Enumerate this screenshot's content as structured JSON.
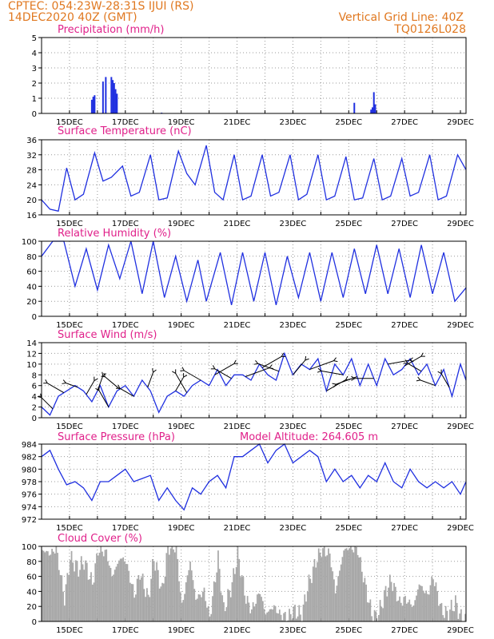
{
  "header": {
    "line1": "CPTEC:   054:23W-28:31S   IJUI (RS)",
    "line2": "14DEC2020 40Z (GMT)",
    "grid_note": "Vertical Grid Line: 40Z",
    "model_code": "TQ0126L028"
  },
  "colors": {
    "header": "#e07820",
    "title": "#e0208a",
    "line": "#2030e0",
    "cloud": "#a8a8a8"
  },
  "chart_data": [
    {
      "type": "bar",
      "title": "Precipitation (mm/h)",
      "ylim": [
        0,
        5
      ],
      "yticks": [
        0,
        1,
        2,
        3,
        4,
        5
      ],
      "date_labels": [
        "15DEC",
        "17DEC",
        "19DEC",
        "21DEC",
        "23DEC",
        "25DEC",
        "27DEC",
        "29DEC"
      ],
      "points": [
        [
          1.8,
          0.9
        ],
        [
          1.85,
          1.1
        ],
        [
          1.9,
          1.2
        ],
        [
          2.2,
          2.1
        ],
        [
          2.3,
          2.4
        ],
        [
          2.5,
          2.4
        ],
        [
          2.55,
          2.2
        ],
        [
          2.6,
          2.0
        ],
        [
          2.65,
          1.6
        ],
        [
          2.7,
          1.3
        ],
        [
          4.3,
          0.05
        ],
        [
          11.2,
          0.7
        ],
        [
          11.8,
          0.25
        ],
        [
          11.85,
          0.4
        ],
        [
          11.9,
          1.4
        ],
        [
          11.95,
          0.6
        ]
      ]
    },
    {
      "type": "line",
      "title": "Surface Temperature (nC)",
      "ylim": [
        16,
        36
      ],
      "yticks": [
        16,
        20,
        24,
        28,
        32,
        36
      ],
      "date_labels": [
        "15DEC",
        "17DEC",
        "19DEC",
        "21DEC",
        "23DEC",
        "25DEC",
        "27DEC",
        "29DEC"
      ],
      "x": [
        0,
        0.3,
        0.6,
        0.9,
        1.2,
        1.5,
        1.9,
        2.2,
        2.5,
        2.9,
        3.2,
        3.5,
        3.9,
        4.2,
        4.5,
        4.9,
        5.2,
        5.5,
        5.9,
        6.2,
        6.5,
        6.9,
        7.2,
        7.5,
        7.9,
        8.2,
        8.5,
        8.9,
        9.2,
        9.5,
        9.9,
        10.2,
        10.5,
        10.9,
        11.2,
        11.5,
        11.9,
        12.2,
        12.5,
        12.9,
        13.2,
        13.5,
        13.9,
        14.2,
        14.5,
        14.9,
        15.2
      ],
      "values": [
        20,
        17.5,
        17,
        28.5,
        20,
        21.5,
        32.5,
        25,
        26,
        29,
        21,
        22,
        32,
        20,
        20.5,
        33,
        27,
        24,
        34.5,
        22,
        20,
        32,
        20,
        21,
        32,
        21,
        22,
        32,
        20,
        21.5,
        32,
        20,
        21,
        31.5,
        20,
        20.5,
        31,
        20,
        21,
        31,
        21,
        22,
        32,
        20,
        21,
        32,
        28
      ]
    },
    {
      "type": "line",
      "title": "Relative Humidity (%)",
      "ylim": [
        0,
        100
      ],
      "yticks": [
        0,
        20,
        40,
        60,
        80,
        100
      ],
      "date_labels": [
        "15DEC",
        "17DEC",
        "19DEC",
        "21DEC",
        "23DEC",
        "25DEC",
        "27DEC",
        "29DEC"
      ],
      "x": [
        0,
        0.4,
        0.8,
        1.2,
        1.6,
        2.0,
        2.4,
        2.8,
        3.2,
        3.6,
        4.0,
        4.4,
        4.8,
        5.2,
        5.6,
        5.9,
        6.4,
        6.8,
        7.2,
        7.6,
        8.0,
        8.4,
        8.8,
        9.2,
        9.6,
        10.0,
        10.4,
        10.8,
        11.2,
        11.6,
        12.0,
        12.4,
        12.8,
        13.2,
        13.6,
        14.0,
        14.4,
        14.8,
        15.2
      ],
      "values": [
        80,
        100,
        100,
        40,
        90,
        35,
        95,
        50,
        100,
        30,
        100,
        25,
        80,
        20,
        75,
        20,
        85,
        15,
        85,
        20,
        85,
        15,
        80,
        25,
        85,
        20,
        85,
        25,
        90,
        30,
        95,
        30,
        90,
        25,
        95,
        30,
        85,
        20,
        38
      ]
    },
    {
      "type": "line",
      "title": "Surface Wind (m/s)",
      "ylim": [
        0,
        14
      ],
      "yticks": [
        0,
        2,
        4,
        6,
        8,
        10,
        12,
        14
      ],
      "date_labels": [
        "15DEC",
        "17DEC",
        "19DEC",
        "21DEC",
        "23DEC",
        "25DEC",
        "27DEC",
        "29DEC"
      ],
      "x": [
        0,
        0.3,
        0.6,
        0.9,
        1.2,
        1.5,
        1.8,
        2.1,
        2.4,
        2.7,
        3.0,
        3.3,
        3.6,
        3.9,
        4.2,
        4.5,
        4.8,
        5.1,
        5.4,
        5.7,
        6.0,
        6.3,
        6.6,
        6.9,
        7.2,
        7.5,
        7.8,
        8.1,
        8.4,
        8.7,
        9.0,
        9.3,
        9.6,
        9.9,
        10.2,
        10.5,
        10.8,
        11.1,
        11.4,
        11.7,
        12.0,
        12.3,
        12.6,
        12.9,
        13.2,
        13.5,
        13.8,
        14.1,
        14.4,
        14.7,
        15.0,
        15.2
      ],
      "values": [
        2,
        0.5,
        4,
        5,
        6,
        5,
        3,
        6,
        2,
        5,
        6,
        4,
        7,
        5,
        1,
        4,
        5,
        4,
        6,
        7,
        6,
        9,
        6,
        8,
        8,
        7,
        10,
        8,
        7,
        12,
        8,
        10,
        9,
        11,
        5,
        10,
        8,
        11,
        6,
        10,
        6,
        11,
        8,
        9,
        11,
        8,
        10,
        6,
        9,
        4,
        10,
        7
      ],
      "arrows": [
        {
          "x": 0.4,
          "dir": 315,
          "len": 5
        },
        {
          "x": 0.8,
          "dir": 300,
          "len": 6
        },
        {
          "x": 1.3,
          "dir": 290,
          "len": 4
        },
        {
          "x": 1.6,
          "dir": 30,
          "len": 5
        },
        {
          "x": 2.0,
          "dir": 20,
          "len": 5
        },
        {
          "x": 2.4,
          "dir": 330,
          "len": 6
        },
        {
          "x": 2.8,
          "dir": 310,
          "len": 6
        },
        {
          "x": 3.3,
          "dir": 300,
          "len": 5
        },
        {
          "x": 3.8,
          "dir": 20,
          "len": 5
        },
        {
          "x": 4.8,
          "dir": 30,
          "len": 5
        },
        {
          "x": 5.2,
          "dir": 330,
          "len": 7
        },
        {
          "x": 5.7,
          "dir": 300,
          "len": 6
        },
        {
          "x": 6.2,
          "dir": 60,
          "len": 7
        },
        {
          "x": 6.8,
          "dir": 300,
          "len": 6
        },
        {
          "x": 7.3,
          "dir": 70,
          "len": 8
        },
        {
          "x": 7.9,
          "dir": 60,
          "len": 7
        },
        {
          "x": 8.5,
          "dir": 290,
          "len": 7
        },
        {
          "x": 9.0,
          "dir": 40,
          "len": 6
        },
        {
          "x": 9.6,
          "dir": 70,
          "len": 8
        },
        {
          "x": 10.2,
          "dir": 60,
          "len": 7
        },
        {
          "x": 10.8,
          "dir": 280,
          "len": 7
        },
        {
          "x": 11.3,
          "dir": 250,
          "len": 7
        },
        {
          "x": 11.9,
          "dir": 270,
          "len": 6
        },
        {
          "x": 12.4,
          "dir": 80,
          "len": 7
        },
        {
          "x": 13.0,
          "dir": 60,
          "len": 6
        },
        {
          "x": 13.6,
          "dir": 300,
          "len": 5
        },
        {
          "x": 14.1,
          "dir": 290,
          "len": 5
        },
        {
          "x": 14.6,
          "dir": 330,
          "len": 5
        }
      ]
    },
    {
      "type": "line",
      "title": "Surface Pressure (hPa)",
      "annotation": "Model Altitude: 264.605 m",
      "ylim": [
        972,
        984
      ],
      "yticks": [
        972,
        974,
        976,
        978,
        980,
        982,
        984
      ],
      "date_labels": [
        "15DEC",
        "17DEC",
        "19DEC",
        "21DEC",
        "23DEC",
        "25DEC",
        "27DEC",
        "29DEC"
      ],
      "x": [
        0,
        0.3,
        0.6,
        0.9,
        1.2,
        1.5,
        1.8,
        2.1,
        2.4,
        2.7,
        3.0,
        3.3,
        3.6,
        3.9,
        4.2,
        4.5,
        4.8,
        5.1,
        5.4,
        5.7,
        6.0,
        6.3,
        6.6,
        6.9,
        7.2,
        7.5,
        7.8,
        8.1,
        8.4,
        8.7,
        9.0,
        9.3,
        9.6,
        9.9,
        10.2,
        10.5,
        10.8,
        11.1,
        11.4,
        11.7,
        12.0,
        12.3,
        12.6,
        12.9,
        13.2,
        13.5,
        13.8,
        14.1,
        14.4,
        14.7,
        15.0,
        15.2
      ],
      "values": [
        982,
        983,
        980,
        977.5,
        978,
        977,
        975,
        978,
        978,
        979,
        980,
        978,
        978.5,
        979,
        975,
        977,
        975,
        973.5,
        977,
        976,
        978,
        979,
        977,
        982,
        982,
        983,
        984,
        981,
        983,
        984,
        981,
        982,
        983,
        982,
        978,
        980,
        978,
        979,
        977,
        979,
        978,
        981,
        978,
        977,
        980,
        978,
        977,
        978,
        977,
        978,
        976,
        978
      ]
    },
    {
      "type": "area",
      "title": "Cloud Cover (%)",
      "ylim": [
        0,
        100
      ],
      "yticks": [
        0,
        20,
        40,
        60,
        80,
        100
      ],
      "date_labels": [
        "15DEC",
        "17DEC",
        "19DEC",
        "21DEC",
        "23DEC",
        "25DEC",
        "27DEC",
        "29DEC"
      ],
      "x": [
        0,
        0.3,
        0.5,
        0.8,
        1.0,
        1.3,
        1.5,
        1.8,
        2.0,
        2.3,
        2.5,
        2.8,
        3.0,
        3.3,
        3.5,
        3.8,
        4.0,
        4.3,
        4.5,
        4.8,
        5.0,
        5.3,
        5.5,
        5.8,
        6.0,
        6.3,
        6.5,
        6.8,
        7.0,
        7.3,
        7.5,
        7.8,
        8.0,
        8.3,
        8.5,
        8.8,
        9.0,
        9.3,
        9.5,
        9.8,
        10.0,
        10.3,
        10.5,
        10.8,
        11.0,
        11.3,
        11.5,
        11.8,
        12.0,
        12.3,
        12.5,
        12.8,
        13.0,
        13.3,
        13.5,
        13.8,
        14.0,
        14.3,
        14.5,
        14.8,
        15.0,
        15.2
      ],
      "values": [
        95,
        90,
        98,
        30,
        85,
        70,
        80,
        50,
        95,
        92,
        60,
        85,
        80,
        35,
        65,
        30,
        85,
        40,
        98,
        99,
        20,
        80,
        30,
        40,
        5,
        85,
        15,
        50,
        90,
        30,
        15,
        40,
        10,
        20,
        10,
        5,
        15,
        8,
        45,
        80,
        95,
        90,
        40,
        95,
        98,
        95,
        60,
        10,
        5,
        40,
        55,
        25,
        30,
        20,
        50,
        35,
        60,
        15,
        10,
        25,
        5,
        0
      ]
    }
  ]
}
